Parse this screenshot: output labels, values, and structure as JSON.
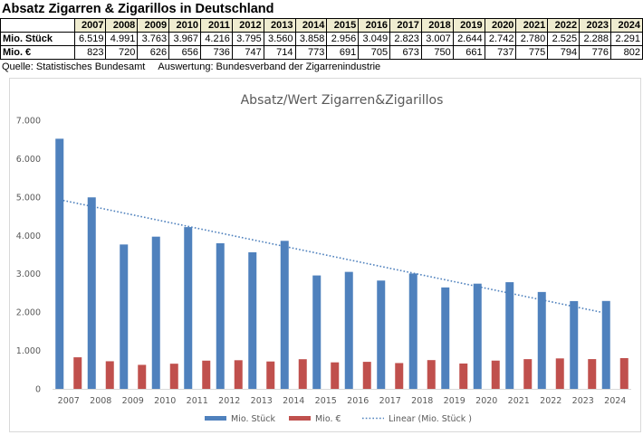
{
  "header": {
    "title": "Absatz Zigarren & Zigarillos in Deutschland",
    "source_label": "Quelle: Statistisches Bundesamt",
    "analysis_label": "Auswertung: Bundesverband der Zigarrenindustrie"
  },
  "table": {
    "years": [
      "2007",
      "2008",
      "2009",
      "2010",
      "2011",
      "2012",
      "2013",
      "2014",
      "2015",
      "2016",
      "2017",
      "2018",
      "2019",
      "2020",
      "2021",
      "2022",
      "2023",
      "2024"
    ],
    "rows": [
      {
        "label": "Mio. Stück",
        "values": [
          "6.519",
          "4.991",
          "3.763",
          "3.967",
          "4.216",
          "3.795",
          "3.560",
          "3.858",
          "2.956",
          "3.049",
          "2.823",
          "3.007",
          "2.644",
          "2.742",
          "2.780",
          "2.525",
          "2.288",
          "2.291"
        ]
      },
      {
        "label": "Mio. €",
        "values": [
          "823",
          "720",
          "626",
          "656",
          "736",
          "747",
          "714",
          "773",
          "691",
          "705",
          "673",
          "750",
          "661",
          "737",
          "775",
          "794",
          "776",
          "802"
        ]
      }
    ]
  },
  "chart_data": {
    "type": "bar",
    "title": "Absatz/Wert Zigarren&Zigarillos",
    "categories": [
      "2007",
      "2008",
      "2009",
      "2010",
      "2011",
      "2012",
      "2013",
      "2014",
      "2015",
      "2016",
      "2017",
      "2018",
      "2019",
      "2020",
      "2021",
      "2022",
      "2023",
      "2024"
    ],
    "series": [
      {
        "name": "Mio. Stück",
        "color": "#4f81bd",
        "values": [
          6519,
          4991,
          3763,
          3967,
          4216,
          3795,
          3560,
          3858,
          2956,
          3049,
          2823,
          3007,
          2644,
          2742,
          2780,
          2525,
          2288,
          2291
        ]
      },
      {
        "name": "Mio. €",
        "color": "#c0504d",
        "values": [
          823,
          720,
          626,
          656,
          736,
          747,
          714,
          773,
          691,
          705,
          673,
          750,
          661,
          737,
          775,
          794,
          776,
          802
        ]
      }
    ],
    "trendline": {
      "name": "Linear (Mio. Stück   )",
      "type": "linear",
      "of_series": "Mio. Stück",
      "color": "#4f81bd",
      "style": "dotted"
    },
    "y_ticks": [
      "0",
      "1.000",
      "2.000",
      "3.000",
      "4.000",
      "5.000",
      "6.000",
      "7.000"
    ],
    "ylim": [
      0,
      7000
    ],
    "legend_position": "bottom",
    "grid": false
  }
}
